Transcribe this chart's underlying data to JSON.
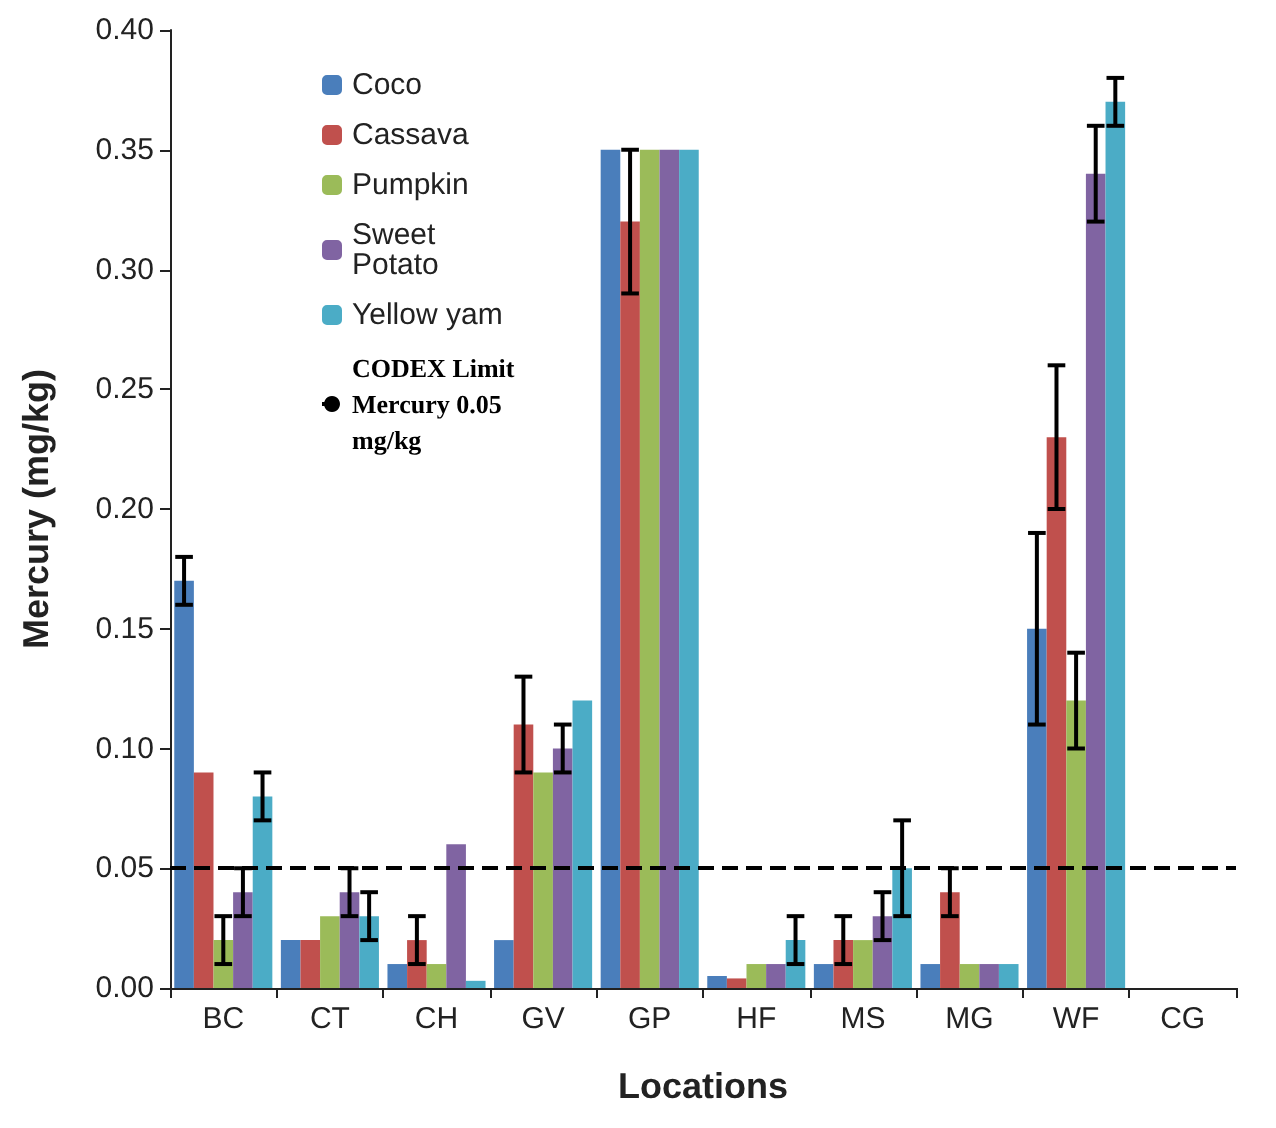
{
  "chart_data": {
    "type": "bar",
    "xlabel": "Locations",
    "ylabel": "Mercury (mg/kg)",
    "categories": [
      "BC",
      "CT",
      "CH",
      "GV",
      "GP",
      "HF",
      "MS",
      "MG",
      "WF",
      "CG"
    ],
    "series": [
      {
        "name": "Coco",
        "color": "#4a7ebb",
        "values": [
          0.17,
          0.02,
          0.01,
          0.02,
          0.35,
          0.005,
          0.01,
          0.01,
          0.15,
          0
        ],
        "errors": [
          0.01,
          null,
          null,
          null,
          null,
          null,
          null,
          null,
          0.04,
          null
        ]
      },
      {
        "name": "Cassava",
        "color": "#c0504d",
        "values": [
          0.09,
          0.02,
          0.02,
          0.11,
          0.32,
          0.004,
          0.02,
          0.04,
          0.23,
          0
        ],
        "errors": [
          null,
          null,
          0.01,
          0.02,
          0.03,
          null,
          0.01,
          0.01,
          0.03,
          null
        ]
      },
      {
        "name": "Pumpkin",
        "color": "#9bbb59",
        "values": [
          0.02,
          0.03,
          0.01,
          0.09,
          0.35,
          0.01,
          0.02,
          0.01,
          0.12,
          0
        ],
        "errors": [
          0.01,
          null,
          null,
          null,
          null,
          null,
          null,
          null,
          0.02,
          null
        ]
      },
      {
        "name": "Sweet Potato",
        "color": "#8064a2",
        "values": [
          0.04,
          0.04,
          0.06,
          0.1,
          0.35,
          0.01,
          0.03,
          0.01,
          0.34,
          0
        ],
        "errors": [
          0.01,
          0.01,
          null,
          0.01,
          null,
          null,
          0.01,
          null,
          0.02,
          null
        ]
      },
      {
        "name": "Yellow yam",
        "color": "#4bacc6",
        "values": [
          0.08,
          0.03,
          0.003,
          0.12,
          0.35,
          0.02,
          0.05,
          0.01,
          0.37,
          0
        ],
        "errors": [
          0.01,
          0.01,
          null,
          null,
          null,
          0.01,
          0.02,
          null,
          0.01,
          null
        ]
      }
    ],
    "ylim": [
      0,
      0.4
    ],
    "yticks": [
      {
        "value": 0,
        "label": "0.00"
      },
      {
        "value": 0.05,
        "label": "0.05"
      },
      {
        "value": 0.1,
        "label": "0.10"
      },
      {
        "value": 0.15,
        "label": "0.15"
      },
      {
        "value": 0.2,
        "label": "0.20"
      },
      {
        "value": 0.25,
        "label": "0.25"
      },
      {
        "value": 0.3,
        "label": "0.30"
      },
      {
        "value": 0.35,
        "label": "0.35"
      },
      {
        "value": 0.4,
        "label": "0.40"
      }
    ],
    "ref_lines": [
      {
        "axis": "y",
        "value": 0.05,
        "label": "CODEX Limit Mercury 0.05 mg/kg",
        "color": "#000000",
        "line_style": "dashed"
      }
    ],
    "legend": "top left",
    "grid": false
  }
}
